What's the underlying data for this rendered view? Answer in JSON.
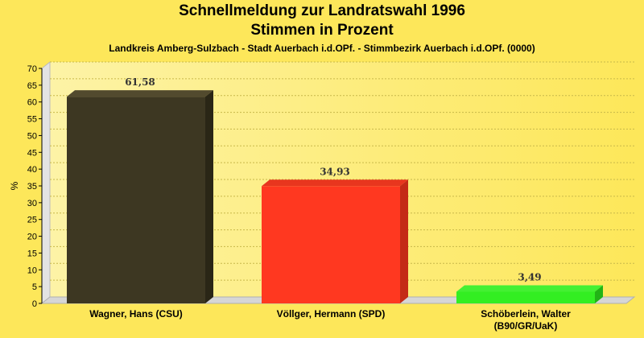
{
  "header": {
    "title_line1": "Schnellmeldung zur Landratswahl 1996",
    "title_line2": "Stimmen in Prozent",
    "subtitle": "Landkreis Amberg-Sulzbach - Stadt Auerbach i.d.OPf. - Stimmbezirk Auerbach i.d.OPf. (0000)"
  },
  "chart_data": {
    "type": "bar",
    "title": "Schnellmeldung zur Landratswahl 1996",
    "subtitle": "Stimmen in Prozent",
    "ylabel": "%",
    "xlabel": "",
    "ylim": [
      0,
      70
    ],
    "yticks": [
      0,
      5,
      10,
      15,
      20,
      25,
      30,
      35,
      40,
      45,
      50,
      55,
      60,
      65,
      70
    ],
    "grid": true,
    "categories": [
      [
        "Wagner, Hans (CSU)"
      ],
      [
        "Völlger, Hermann (SPD)"
      ],
      [
        "Schöberlein, Walter",
        "(B90/GR/UaK)"
      ]
    ],
    "values": [
      61.58,
      34.93,
      3.49
    ],
    "value_labels": [
      "61,58",
      "34,93",
      "3,49"
    ],
    "colors": [
      "#3d3722",
      "#ff3820",
      "#33ee22"
    ],
    "side_colors": [
      "#2a2616",
      "#c42a16",
      "#22b416"
    ],
    "top_colors": [
      "#524a2e",
      "#e8361e",
      "#44f033"
    ]
  }
}
